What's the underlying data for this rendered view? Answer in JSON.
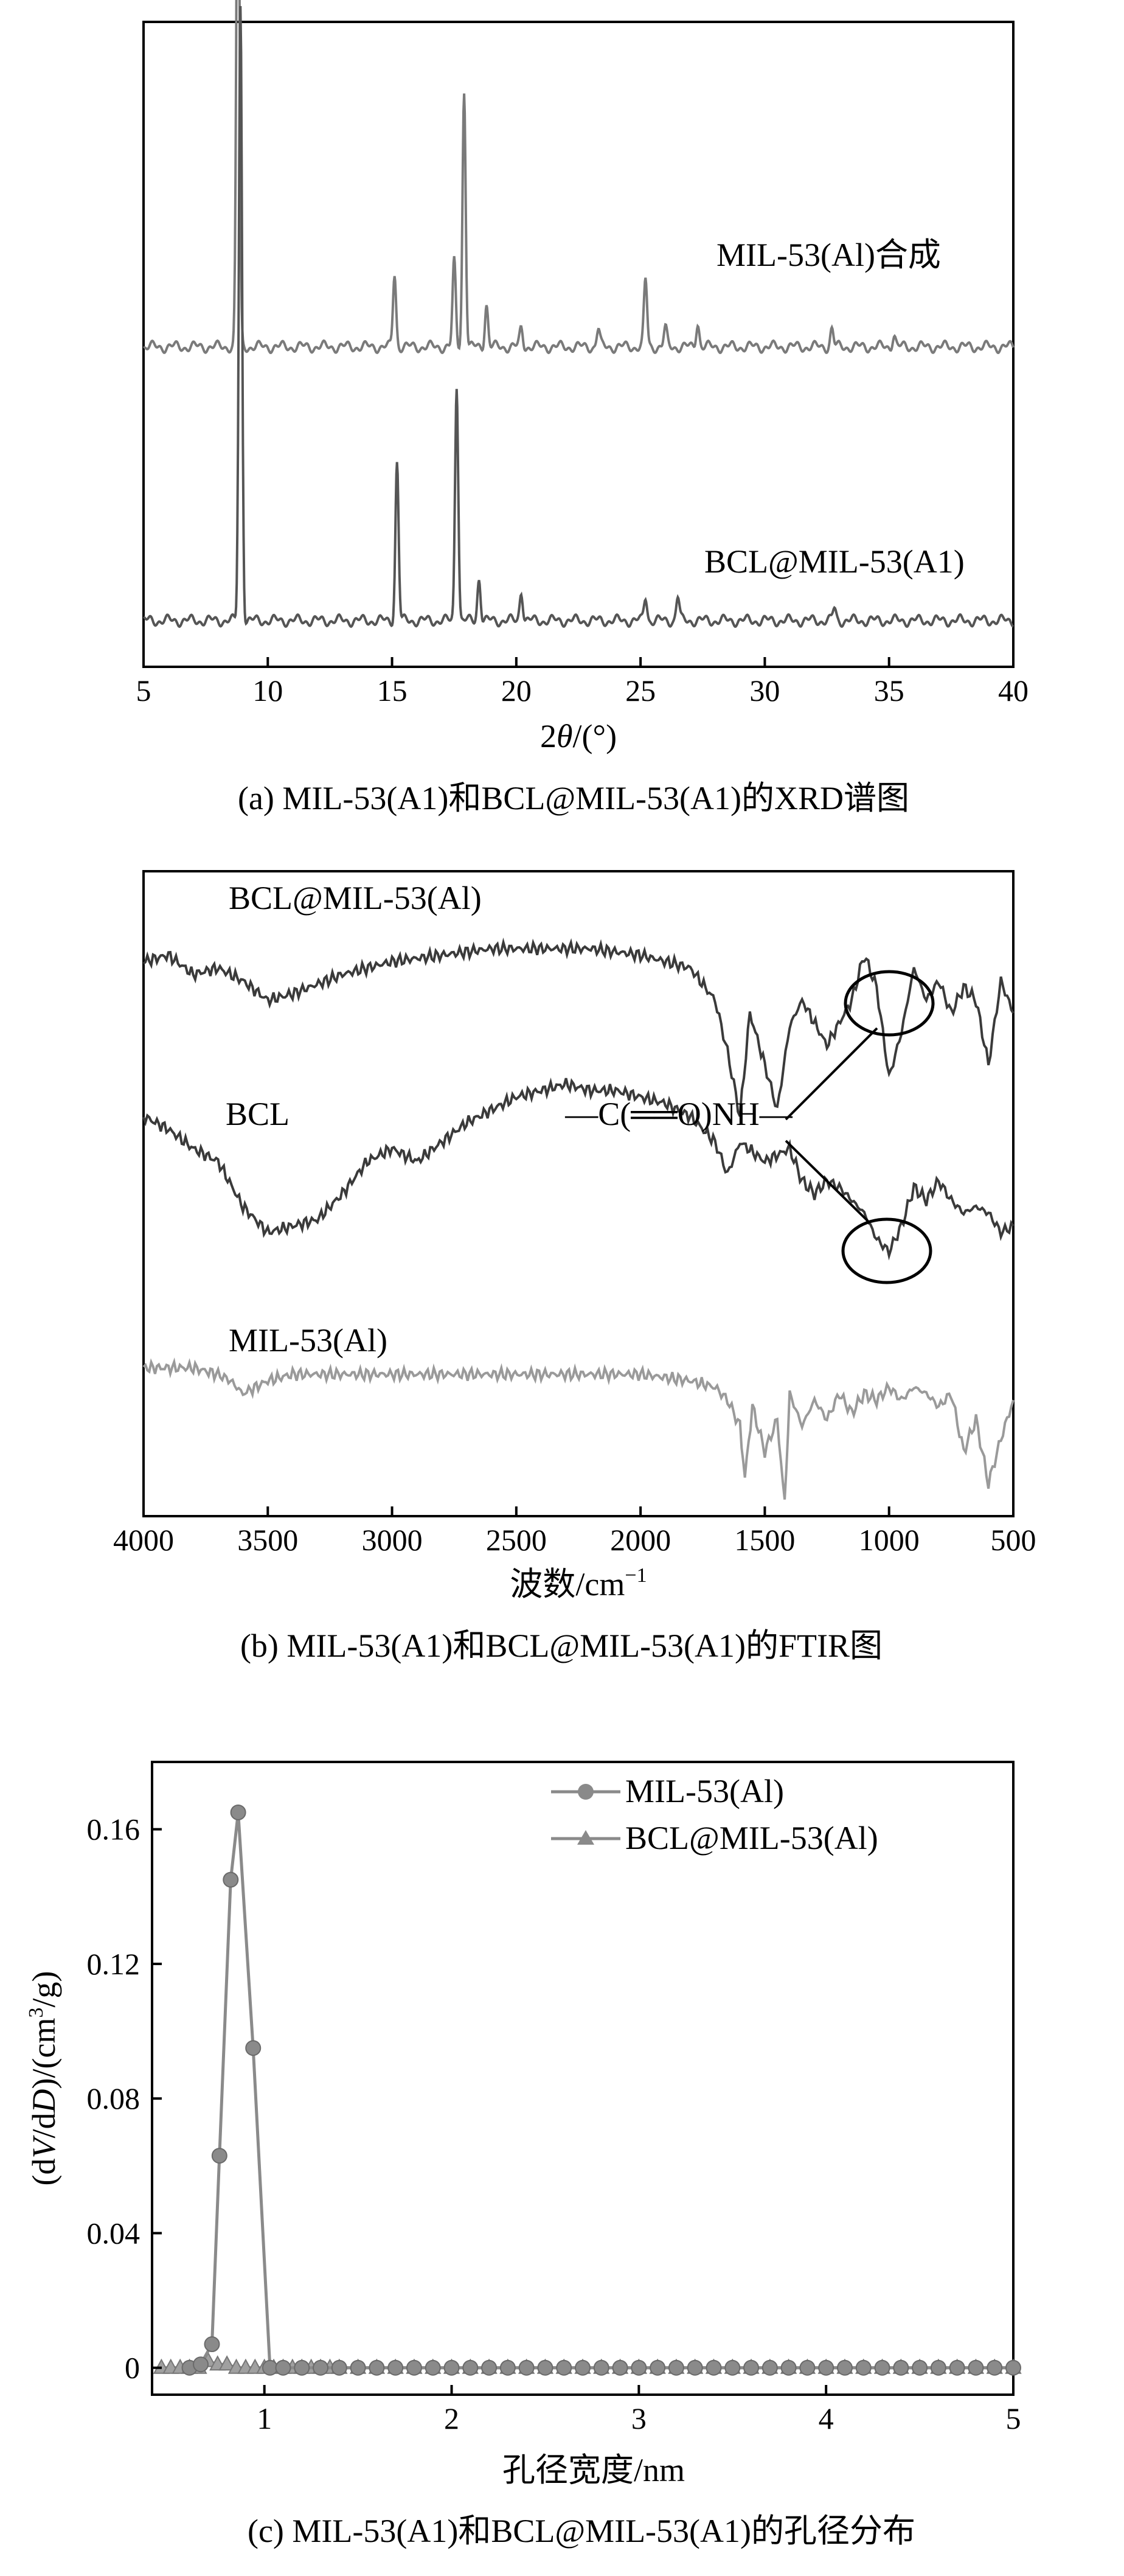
{
  "chart_data": [
    {
      "type": "line",
      "caption": "(a) MIL-53(A1)和BCL@MIL-53(A1)的XRD谱图",
      "xlabel_prefix": "2",
      "xlabel_theta": "θ",
      "xlabel_suffix": "/(°)",
      "xlim": [
        5,
        40
      ],
      "xticks": [
        "5",
        "10",
        "15",
        "20",
        "25",
        "30",
        "35",
        "40"
      ],
      "y_ticks_shown": false,
      "series": [
        {
          "name": "MIL-53(Al)合成",
          "color": "#7a7a7a",
          "baseline": 0.5,
          "peaks": [
            [
              8.8,
              0.95
            ],
            [
              15.1,
              0.12
            ],
            [
              17.5,
              0.14
            ],
            [
              17.9,
              0.42
            ],
            [
              18.8,
              0.07
            ],
            [
              20.2,
              0.03
            ],
            [
              23.3,
              0.03
            ],
            [
              25.2,
              0.11
            ],
            [
              26.0,
              0.03
            ],
            [
              27.3,
              0.04
            ],
            [
              32.7,
              0.03
            ],
            [
              35.2,
              0.02
            ]
          ]
        },
        {
          "name": "BCL@MIL-53(A1)",
          "color": "#555555",
          "baseline": 0.05,
          "peaks": [
            [
              8.9,
              1.01
            ],
            [
              15.2,
              0.26
            ],
            [
              17.6,
              0.39
            ],
            [
              18.5,
              0.07
            ],
            [
              20.2,
              0.05
            ],
            [
              25.2,
              0.04
            ],
            [
              26.5,
              0.04
            ],
            [
              32.8,
              0.02
            ]
          ]
        }
      ]
    },
    {
      "type": "line",
      "caption": "(b) MIL-53(A1)和BCL@MIL-53(A1)的FTIR图",
      "xlabel_main": "波数/cm",
      "xlabel_sup": "−1",
      "xlim": [
        4000,
        500
      ],
      "xticks": [
        "4000",
        "3500",
        "3000",
        "2500",
        "2000",
        "1500",
        "1000",
        "500"
      ],
      "annotation": "—C(══O)NH—",
      "series": [
        {
          "name": "BCL@MIL-53(Al)",
          "color": "#3a3a3a",
          "x": [
            4000,
            3900,
            3800,
            3700,
            3600,
            3500,
            3400,
            3200,
            3000,
            2800,
            2600,
            2400,
            2200,
            2000,
            1800,
            1700,
            1650,
            1600,
            1560,
            1500,
            1450,
            1400,
            1350,
            1250,
            1150,
            1100,
            1050,
            1000,
            950,
            900,
            850,
            800,
            750,
            700,
            650,
            600,
            550,
            500
          ],
          "y": [
            0.86,
            0.87,
            0.84,
            0.85,
            0.83,
            0.8,
            0.81,
            0.84,
            0.86,
            0.87,
            0.88,
            0.88,
            0.88,
            0.87,
            0.85,
            0.8,
            0.72,
            0.62,
            0.78,
            0.7,
            0.63,
            0.76,
            0.8,
            0.73,
            0.8,
            0.87,
            0.82,
            0.68,
            0.75,
            0.85,
            0.8,
            0.83,
            0.78,
            0.82,
            0.8,
            0.7,
            0.83,
            0.78
          ]
        },
        {
          "name": "BCL",
          "color": "#3a3a3a",
          "x": [
            4000,
            3900,
            3800,
            3700,
            3600,
            3500,
            3400,
            3300,
            3200,
            3100,
            3000,
            2900,
            2800,
            2700,
            2600,
            2500,
            2400,
            2300,
            2200,
            2100,
            2000,
            1900,
            1800,
            1700,
            1650,
            1600,
            1500,
            1400,
            1350,
            1300,
            1250,
            1200,
            1150,
            1100,
            1050,
            1000,
            950,
            900,
            850,
            800,
            750,
            700,
            650,
            600,
            550,
            500
          ],
          "y": [
            0.62,
            0.6,
            0.57,
            0.55,
            0.48,
            0.44,
            0.45,
            0.46,
            0.5,
            0.55,
            0.57,
            0.55,
            0.58,
            0.61,
            0.63,
            0.65,
            0.66,
            0.67,
            0.66,
            0.66,
            0.65,
            0.64,
            0.62,
            0.58,
            0.53,
            0.58,
            0.55,
            0.57,
            0.52,
            0.5,
            0.52,
            0.51,
            0.49,
            0.47,
            0.43,
            0.41,
            0.45,
            0.51,
            0.49,
            0.52,
            0.49,
            0.47,
            0.48,
            0.47,
            0.44,
            0.45
          ]
        },
        {
          "name": "MIL-53(Al)",
          "color": "#9a9a9a",
          "x": [
            4000,
            3900,
            3800,
            3700,
            3650,
            3600,
            3500,
            3400,
            3200,
            3000,
            2800,
            2600,
            2400,
            2200,
            2000,
            1800,
            1700,
            1650,
            1600,
            1580,
            1550,
            1500,
            1450,
            1420,
            1400,
            1350,
            1300,
            1250,
            1200,
            1150,
            1100,
            1050,
            1000,
            950,
            900,
            850,
            800,
            750,
            700,
            650,
            600,
            550,
            500
          ],
          "y": [
            0.23,
            0.23,
            0.23,
            0.22,
            0.21,
            0.19,
            0.21,
            0.22,
            0.22,
            0.22,
            0.22,
            0.22,
            0.22,
            0.22,
            0.22,
            0.21,
            0.2,
            0.18,
            0.14,
            0.06,
            0.17,
            0.1,
            0.15,
            0.02,
            0.19,
            0.14,
            0.18,
            0.15,
            0.19,
            0.16,
            0.19,
            0.18,
            0.2,
            0.18,
            0.2,
            0.19,
            0.17,
            0.19,
            0.1,
            0.15,
            0.05,
            0.12,
            0.18
          ]
        }
      ]
    },
    {
      "type": "line",
      "caption": "(c) MIL-53(A1)和BCL@MIL-53(A1)的孔径分布",
      "xlabel": "孔径宽度/nm",
      "ylabel_parts": [
        "(d",
        "V",
        "/d",
        "D",
        ")/(cm",
        "3",
        "/g)"
      ],
      "xlim": [
        0.4,
        5
      ],
      "ylim": [
        -0.008,
        0.18
      ],
      "xticks": [
        1,
        2,
        3,
        4,
        5
      ],
      "xtick_labels": [
        "1",
        "2",
        "3",
        "4",
        "5"
      ],
      "yticks": [
        0,
        0.04,
        0.08,
        0.12,
        0.16
      ],
      "ytick_labels": [
        "0",
        "0.04",
        "0.08",
        "0.12",
        "0.16"
      ],
      "legend_position": "top-right",
      "series": [
        {
          "name": "MIL-53(Al)",
          "marker": "circle",
          "color": "#8a8a8a",
          "x": [
            0.6,
            0.66,
            0.72,
            0.76,
            0.82,
            0.86,
            0.94,
            1.03,
            1.1,
            1.2,
            1.3,
            1.4,
            1.5,
            1.6,
            1.7,
            1.8,
            1.9,
            2.0,
            2.1,
            2.2,
            2.3,
            2.4,
            2.5,
            2.6,
            2.7,
            2.8,
            2.9,
            3.0,
            3.1,
            3.2,
            3.3,
            3.4,
            3.5,
            3.6,
            3.7,
            3.8,
            3.9,
            4.0,
            4.1,
            4.2,
            4.3,
            4.4,
            4.5,
            4.6,
            4.7,
            4.8,
            4.9,
            5.0
          ],
          "y": [
            0,
            0.001,
            0.007,
            0.063,
            0.145,
            0.165,
            0.095,
            0,
            0,
            0,
            0,
            0,
            0,
            0,
            0,
            0,
            0,
            0,
            0,
            0,
            0,
            0,
            0,
            0,
            0,
            0,
            0,
            0,
            0,
            0,
            0,
            0,
            0,
            0,
            0,
            0,
            0,
            0,
            0,
            0,
            0,
            0,
            0,
            0,
            0,
            0,
            0,
            0
          ]
        },
        {
          "name": "BCL@MIL-53(Al)",
          "marker": "triangle",
          "color": "#8a8a8a",
          "x": [
            0.45,
            0.5,
            0.55,
            0.6,
            0.65,
            0.7,
            0.75,
            0.8,
            0.85,
            0.9,
            0.95,
            1.0,
            1.05,
            1.1,
            1.15,
            1.2,
            1.25,
            1.3,
            1.35,
            1.4,
            1.5,
            1.6,
            1.7,
            1.8,
            1.9,
            2.0,
            2.1,
            2.2,
            2.3,
            2.4,
            2.5,
            2.6,
            2.7,
            2.8,
            2.9,
            3.0,
            3.1,
            3.2,
            3.3,
            3.4,
            3.5,
            3.6,
            3.7,
            3.8,
            3.9,
            4.0,
            4.1,
            4.2,
            4.3,
            4.4,
            4.5,
            4.6,
            4.7,
            4.8,
            4.9,
            5.0
          ],
          "y": [
            0,
            0,
            0,
            0,
            0,
            0.002,
            0.001,
            0.001,
            0,
            0,
            0,
            0,
            0,
            0,
            0,
            0,
            0,
            0,
            0,
            0,
            0,
            0,
            0,
            0,
            0,
            0,
            0,
            0,
            0,
            0,
            0,
            0,
            0,
            0,
            0,
            0,
            0,
            0,
            0,
            0,
            0,
            0,
            0,
            0,
            0,
            0,
            0,
            0,
            0,
            0,
            0,
            0,
            0,
            0,
            0,
            0
          ]
        }
      ]
    }
  ]
}
